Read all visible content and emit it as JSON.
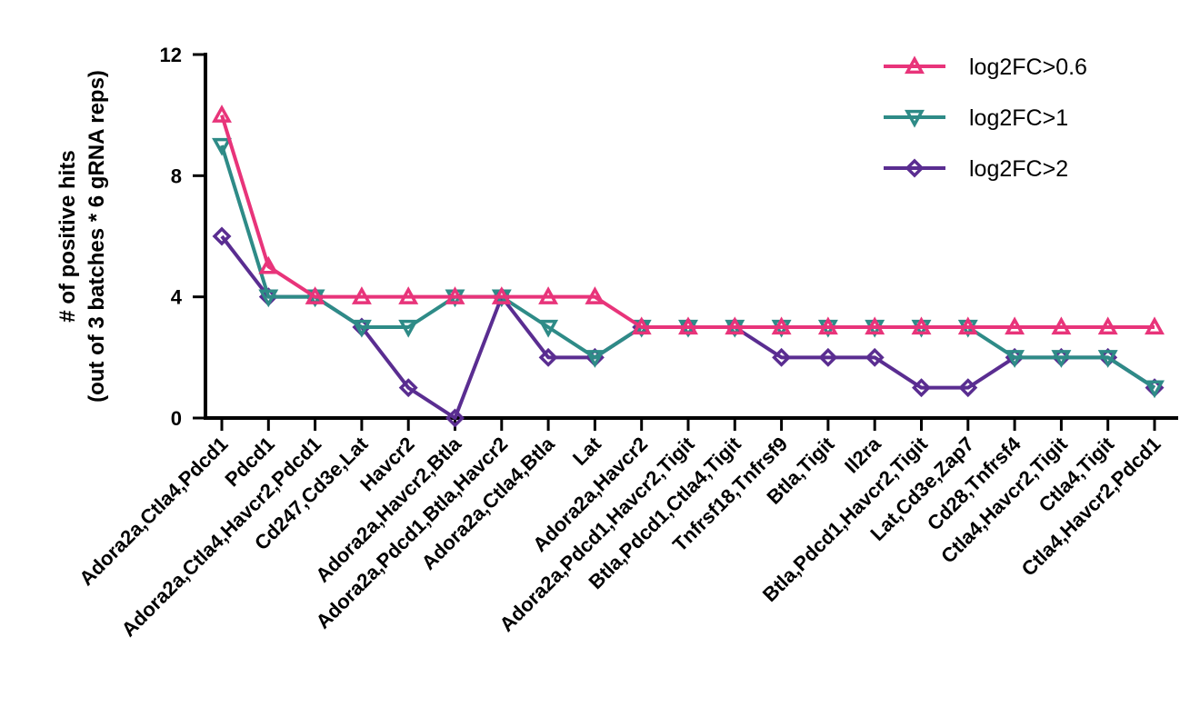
{
  "chart_data": {
    "type": "line",
    "ylabel_line1": "# of positive hits",
    "ylabel_line2": "(out of 3 batches * 6 gRNA reps)",
    "ylim": [
      0,
      12
    ],
    "yticks": [
      0,
      4,
      8,
      12
    ],
    "grid": false,
    "legend_position": "top-right",
    "categories": [
      "Adora2a,Ctla4,Pdcd1",
      "Pdcd1",
      "Adora2a,Ctla4,Havcr2,Pdcd1",
      "Cd247,Cd3e,Lat",
      "Havcr2",
      "Adora2a,Havcr2,Btla",
      "Adora2a,Pdcd1,Btla,Havcr2",
      "Adora2a,Ctla4,Btla",
      "Lat",
      "Adora2a,Havcr2",
      "Adora2a,Pdcd1,Havcr2,Tigit",
      "Btla,Pdcd1,Ctla4,Tigit",
      "Tnfrsf18,Tnfrsf9",
      "Btla,Tigit",
      "Il2ra",
      "Btla,Pdcd1,Havcr2,Tigit",
      "Lat,Cd3e,Zap7",
      "Cd28,Tnfrsf4",
      "Ctla4,Havcr2,Tigit",
      "Ctla4,Tigit",
      "Ctla4,Havcr2,Pdcd1"
    ],
    "series": [
      {
        "name": "log2FC>0.6",
        "color": "#e8347a",
        "marker": "triangle-up",
        "values": [
          10,
          5,
          4,
          4,
          4,
          4,
          4,
          4,
          4,
          3,
          3,
          3,
          3,
          3,
          3,
          3,
          3,
          3,
          3,
          3,
          3
        ]
      },
      {
        "name": "log2FC>1",
        "color": "#2e8b87",
        "marker": "triangle-down",
        "values": [
          9,
          4,
          4,
          3,
          3,
          4,
          4,
          3,
          2,
          3,
          3,
          3,
          3,
          3,
          3,
          3,
          3,
          2,
          2,
          2,
          1
        ]
      },
      {
        "name": "log2FC>2",
        "color": "#5a2d91",
        "marker": "diamond",
        "values": [
          6,
          4,
          4,
          3,
          1,
          0,
          4,
          2,
          2,
          3,
          3,
          3,
          2,
          2,
          2,
          1,
          1,
          2,
          2,
          2,
          1
        ]
      }
    ]
  }
}
